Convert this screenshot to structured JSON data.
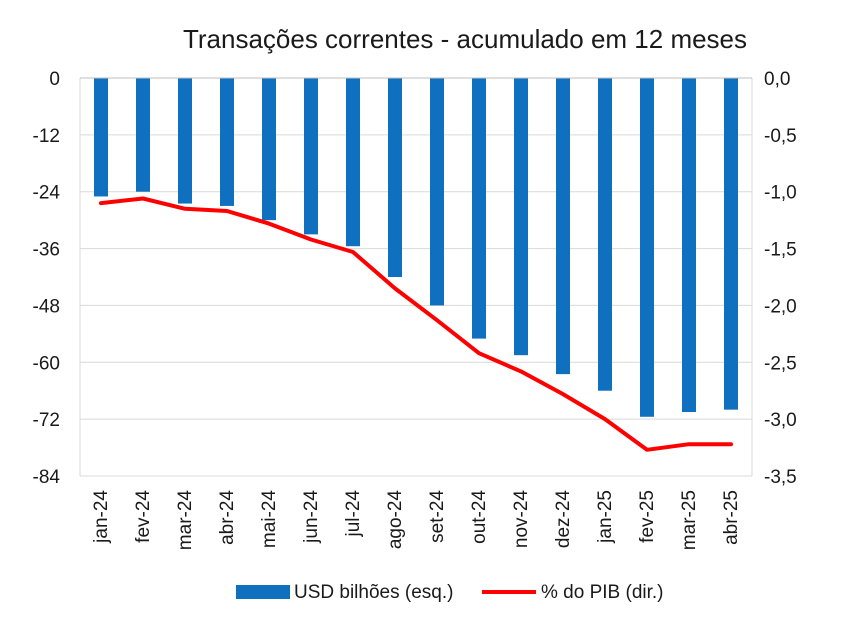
{
  "chart_data": {
    "type": "bar",
    "title": "Transações correntes - acumulado em 12 meses",
    "categories": [
      "jan-24",
      "fev-24",
      "mar-24",
      "abr-24",
      "mai-24",
      "jun-24",
      "jul-24",
      "ago-24",
      "set-24",
      "out-24",
      "nov-24",
      "dez-24",
      "jan-25",
      "fev-25",
      "mar-25",
      "abr-25"
    ],
    "series": [
      {
        "name": "USD bilhões (esq.)",
        "type": "bar",
        "axis": "left",
        "color": "#1070C0",
        "values": [
          -25.0,
          -24.0,
          -26.5,
          -27.0,
          -30.0,
          -33.0,
          -35.5,
          -42.0,
          -48.0,
          -55.0,
          -58.5,
          -62.5,
          -66.0,
          -71.5,
          -70.5,
          -70.0
        ]
      },
      {
        "name": "% do PIB (dir.)",
        "type": "line",
        "axis": "right",
        "color": "#FF0000",
        "values": [
          -1.1,
          -1.06,
          -1.15,
          -1.17,
          -1.28,
          -1.42,
          -1.53,
          -1.85,
          -2.13,
          -2.42,
          -2.58,
          -2.78,
          -3.0,
          -3.27,
          -3.22,
          -3.22
        ]
      }
    ],
    "y_left": {
      "min": -84,
      "max": 0,
      "ticks": [
        "0",
        "-12",
        "-24",
        "-36",
        "-48",
        "-60",
        "-72",
        "-84"
      ]
    },
    "y_right": {
      "min": -3.5,
      "max": 0,
      "ticks": [
        "0,0",
        "-0,5",
        "-1,0",
        "-1,5",
        "-2,0",
        "-2,5",
        "-3,0",
        "-3,5"
      ]
    },
    "grid": true,
    "legend_position": "bottom"
  }
}
